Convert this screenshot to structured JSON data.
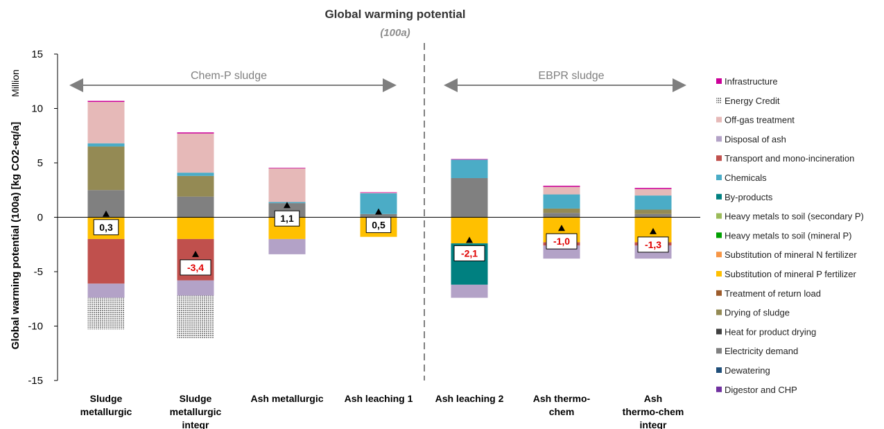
{
  "chart_data": {
    "type": "bar",
    "stacked": true,
    "title": "Global warming potential",
    "subtitle": "(100a)",
    "ylabel": "Global warming potential (100a) [kg CO2-eq/a]",
    "yunit": "Million",
    "ylim": [
      -15,
      15
    ],
    "yticks": [
      "15",
      "10",
      "5",
      "0",
      "-5",
      "-10",
      "-15"
    ],
    "categories": [
      [
        "Sludge",
        "metallurgic"
      ],
      [
        "Sludge",
        "metallurgic",
        "integr"
      ],
      [
        "Ash metallurgic"
      ],
      [
        "Ash leaching 1"
      ],
      [
        "Ash leaching 2"
      ],
      [
        "Ash thermo-",
        "chem"
      ],
      [
        "Ash",
        "thermo-chem",
        "integr"
      ]
    ],
    "groups": [
      {
        "label": "Chem-P sludge",
        "from": 0,
        "to": 3
      },
      {
        "label": "EBPR sludge",
        "from": 4,
        "to": 6
      }
    ],
    "legend": [
      {
        "name": "Infrastructure",
        "color": "#cc0099"
      },
      {
        "name": "Energy Credit",
        "color": "#a6a6a6",
        "pattern": "grid"
      },
      {
        "name": "Off-gas treatment",
        "color": "#e6b9b8"
      },
      {
        "name": "Disposal of ash",
        "color": "#b3a2c7"
      },
      {
        "name": "Transport and mono-incineration",
        "color": "#c0504d"
      },
      {
        "name": "Chemicals",
        "color": "#4bacc6"
      },
      {
        "name": "By-products",
        "color": "#008080"
      },
      {
        "name": "Heavy metals to soil (secondary P)",
        "color": "#9bbb59"
      },
      {
        "name": "Heavy metals to soil (mineral P)",
        "color": "#00a000"
      },
      {
        "name": "Substitution of mineral N fertilizer",
        "color": "#f79646"
      },
      {
        "name": "Substitution of mineral P fertilizer",
        "color": "#ffc000"
      },
      {
        "name": "Treatment of return load",
        "color": "#9c5b2b"
      },
      {
        "name": "Drying of sludge",
        "color": "#948a54"
      },
      {
        "name": "Heat for product drying",
        "color": "#404040"
      },
      {
        "name": "Electricity demand",
        "color": "#808080"
      },
      {
        "name": "Dewatering",
        "color": "#1f4e79"
      },
      {
        "name": "Digestor and CHP",
        "color": "#7030a0"
      }
    ],
    "series_values": [
      {
        "name": "Electricity demand",
        "values": [
          2.5,
          1.9,
          1.3,
          0.3,
          3.6,
          0.4,
          0.3
        ]
      },
      {
        "name": "Drying of sludge",
        "values": [
          4.0,
          1.9,
          0,
          0,
          0,
          0.4,
          0.4
        ]
      },
      {
        "name": "Chemicals",
        "values": [
          0.3,
          0.3,
          0.1,
          1.9,
          1.7,
          1.3,
          1.3
        ]
      },
      {
        "name": "Off-gas treatment",
        "values": [
          3.8,
          3.6,
          3.1,
          0.05,
          0,
          0.7,
          0.6
        ]
      },
      {
        "name": "Infrastructure",
        "values": [
          0.1,
          0.1,
          0.05,
          0.05,
          0.05,
          0.1,
          0.1
        ]
      },
      {
        "name": "Substitution of mineral P fertilizer",
        "values": [
          -2.0,
          -2.0,
          -2.0,
          -1.8,
          -2.4,
          -2.3,
          -2.3
        ]
      },
      {
        "name": "Transport and mono-incineration",
        "values": [
          -4.1,
          -3.8,
          0,
          0,
          0,
          -0.3,
          -0.3
        ]
      },
      {
        "name": "By-products",
        "values": [
          0,
          0,
          0,
          0,
          -3.8,
          0,
          0
        ]
      },
      {
        "name": "Disposal of ash",
        "values": [
          -1.3,
          -1.4,
          -1.4,
          0,
          -1.2,
          -1.2,
          -1.2
        ]
      },
      {
        "name": "Energy Credit",
        "values": [
          -2.9,
          -3.9,
          0,
          0,
          0,
          0,
          0
        ]
      }
    ],
    "totals": [
      "0,3",
      "-3,4",
      "1,1",
      "0,5",
      "-2,1",
      "-1,0",
      "-1,3"
    ],
    "totals_values": [
      0.3,
      -3.4,
      1.1,
      0.5,
      -2.1,
      -1.0,
      -1.3
    ]
  }
}
